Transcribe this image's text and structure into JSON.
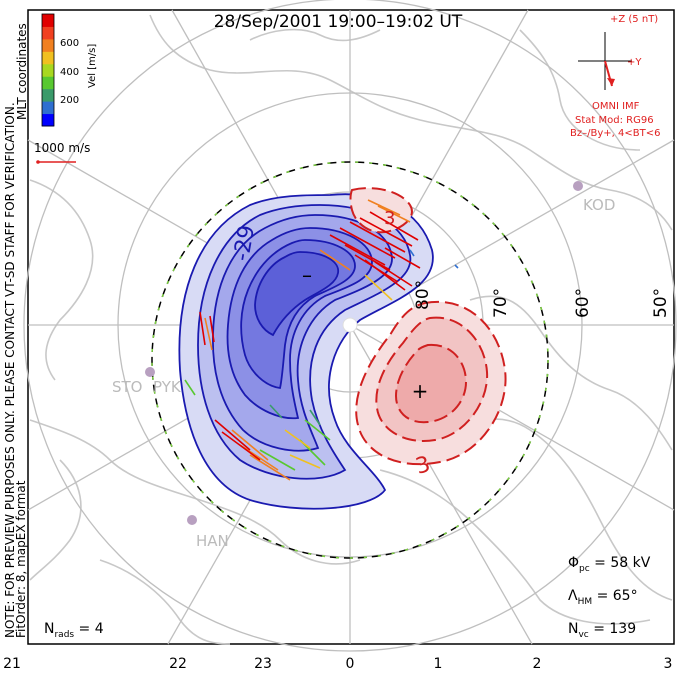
{
  "title": "28/Sep/2001 19:00–19:02 UT",
  "vertical_note": "NOTE: FOR PREVIEW PURPOSES ONLY. PLEASE CONTACT VT-SD STAFF FOR VERIFICATION.",
  "fit_order_label": "FitOrder: 8, mapEX format",
  "colorbar": {
    "title": "Vel [m/s]",
    "ticks": [
      "600",
      "400",
      "200"
    ],
    "coord_label": "MLT coordinates",
    "colors": [
      "#0000ff",
      "#2f6fd0",
      "#3a9a6a",
      "#58c830",
      "#a8d820",
      "#f0c020",
      "#f08020",
      "#f04020",
      "#e00000"
    ]
  },
  "scale_vector_label": "1000 m/s",
  "imf": {
    "z_label": "+Z (5 nT)",
    "y_label": "+Y",
    "source_label": "OMNI IMF",
    "stat_mod_label": "Stat Mod: RG96",
    "condition_label": "Bz–/By+, 4<BT<6",
    "color": "#e02020"
  },
  "latitude_labels": [
    "80°",
    "70°",
    "60°",
    "50°"
  ],
  "mlt_labels": [
    "21",
    "22",
    "23",
    "0",
    "1",
    "2",
    "3"
  ],
  "stations": [
    "KOD",
    "STO",
    "PYK",
    "HAN"
  ],
  "contour_labels": {
    "negative": "-29",
    "positive": "3",
    "second_positive": "3",
    "minus_marker": "–",
    "plus_marker": "+"
  },
  "stats": {
    "phi_symbol": "Φ",
    "phi_sub": "pc",
    "phi_value": " = 58 kV",
    "lambda_symbol": "Λ",
    "lambda_sub": "HM",
    "lambda_value": " = 65°",
    "nvc_symbol": "N",
    "nvc_sub": "vc",
    "nvc_value": " = 139",
    "nrads_symbol": "N",
    "nrads_sub": "rads",
    "nrads_value": " = 4"
  },
  "colors": {
    "negative_fill": "#7d7df0",
    "negative_line": "#1a1ab0",
    "positive_fill": "#f0a0a0",
    "positive_line": "#d02020",
    "grid": "#bfbfbf",
    "coastline": "#c8c8c8"
  }
}
